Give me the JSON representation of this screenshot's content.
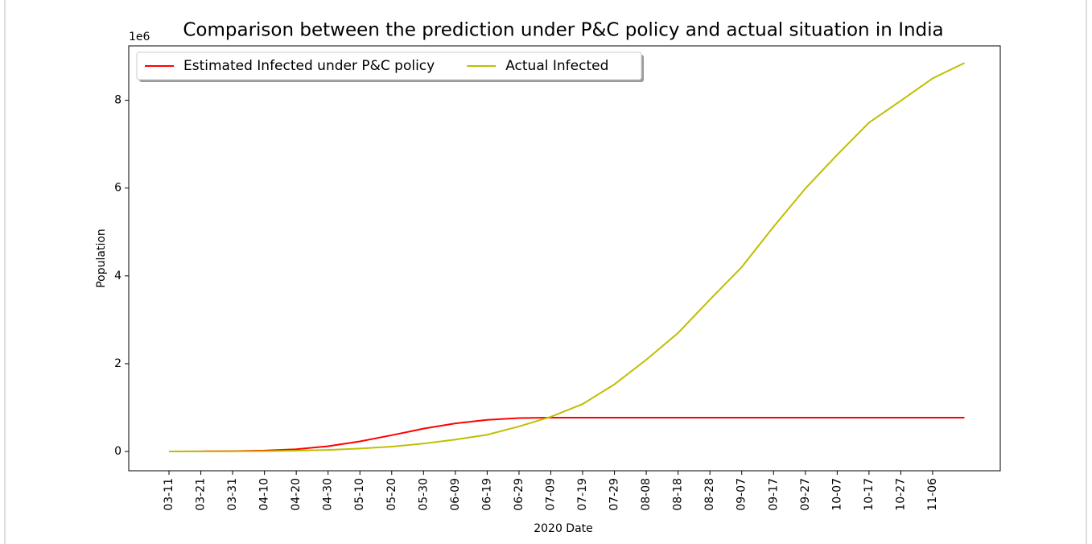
{
  "chart_data": {
    "type": "line",
    "title": "Comparison between the prediction under P&C policy and actual situation in India",
    "x_label": "2020 Date",
    "y_label": "Population",
    "y_offset_label": "1e6",
    "categories": [
      "03-11",
      "03-21",
      "03-31",
      "04-10",
      "04-20",
      "04-30",
      "05-10",
      "05-20",
      "05-30",
      "06-09",
      "06-19",
      "06-29",
      "07-09",
      "07-19",
      "07-29",
      "08-08",
      "08-18",
      "08-28",
      "09-07",
      "09-17",
      "09-27",
      "10-07",
      "10-17",
      "10-27",
      "11-06",
      null
    ],
    "series": [
      {
        "name": "Estimated Infected under P&C policy",
        "color": "#ff0000",
        "values": [
          0,
          3000,
          8000,
          20000,
          50000,
          120000,
          230000,
          370000,
          520000,
          640000,
          720000,
          760000,
          770000,
          770000,
          770000,
          770000,
          770000,
          770000,
          770000,
          770000,
          770000,
          770000,
          770000,
          770000,
          770000,
          770000
        ]
      },
      {
        "name": "Actual Infected",
        "color": "#bfbf00",
        "values": [
          0,
          0,
          1500,
          7000,
          18000,
          34000,
          67000,
          110000,
          180000,
          270000,
          380000,
          570000,
          790000,
          1080000,
          1530000,
          2090000,
          2700000,
          3460000,
          4200000,
          5120000,
          5990000,
          6760000,
          7490000,
          7990000,
          8500000,
          8850000
        ]
      }
    ],
    "ylim": [
      -440000,
      9240000
    ],
    "yticks": [
      {
        "value": 0,
        "label": "0"
      },
      {
        "value": 2000000,
        "label": "2"
      },
      {
        "value": 4000000,
        "label": "4"
      },
      {
        "value": 6000000,
        "label": "6"
      },
      {
        "value": 8000000,
        "label": "8"
      }
    ],
    "legend": "upper left"
  }
}
